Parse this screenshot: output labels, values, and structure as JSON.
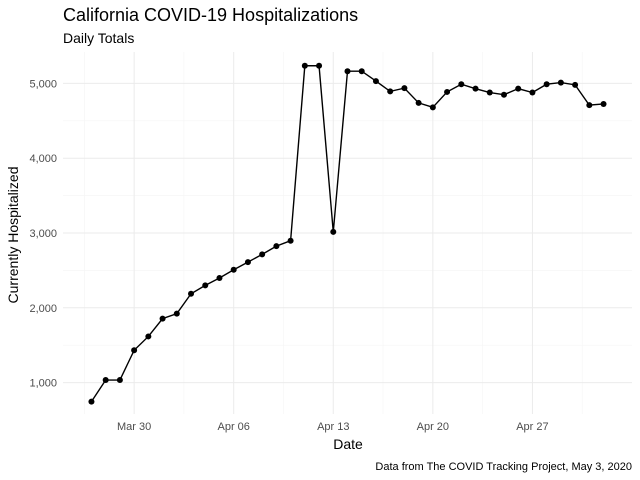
{
  "chart_data": {
    "type": "line",
    "title": "California COVID-19 Hospitalizations",
    "subtitle": "Daily Totals",
    "xlabel": "Date",
    "ylabel": "Currently Hospitalized",
    "caption": "Data from The COVID Tracking Project, May 3, 2020",
    "x_ticks": [
      {
        "date": "2020-03-30",
        "label": "Mar 30"
      },
      {
        "date": "2020-04-06",
        "label": "Apr 06"
      },
      {
        "date": "2020-04-13",
        "label": "Apr 13"
      },
      {
        "date": "2020-04-20",
        "label": "Apr 20"
      },
      {
        "date": "2020-04-27",
        "label": "Apr 27"
      }
    ],
    "y_ticks": [
      1000,
      2000,
      3000,
      4000,
      5000
    ],
    "y_tick_labels": [
      "1,000",
      "2,000",
      "3,000",
      "4,000",
      "5,000"
    ],
    "xlim": [
      "2020-03-25",
      "2020-05-04"
    ],
    "ylim": [
      580,
      5420
    ],
    "grid": true,
    "series": [
      {
        "points": [
          {
            "x": "2020-03-27",
            "y": 746
          },
          {
            "x": "2020-03-28",
            "y": 1034
          },
          {
            "x": "2020-03-29",
            "y": 1034
          },
          {
            "x": "2020-03-30",
            "y": 1432
          },
          {
            "x": "2020-03-31",
            "y": 1617
          },
          {
            "x": "2020-04-01",
            "y": 1855
          },
          {
            "x": "2020-04-02",
            "y": 1922
          },
          {
            "x": "2020-04-03",
            "y": 2188
          },
          {
            "x": "2020-04-04",
            "y": 2300
          },
          {
            "x": "2020-04-05",
            "y": 2398
          },
          {
            "x": "2020-04-06",
            "y": 2509
          },
          {
            "x": "2020-04-07",
            "y": 2611
          },
          {
            "x": "2020-04-08",
            "y": 2714
          },
          {
            "x": "2020-04-09",
            "y": 2825
          },
          {
            "x": "2020-04-10",
            "y": 2897
          },
          {
            "x": "2020-04-11",
            "y": 5236
          },
          {
            "x": "2020-04-12",
            "y": 5236
          },
          {
            "x": "2020-04-13",
            "y": 3015
          },
          {
            "x": "2020-04-14",
            "y": 5163
          },
          {
            "x": "2020-04-15",
            "y": 5163
          },
          {
            "x": "2020-04-16",
            "y": 5031
          },
          {
            "x": "2020-04-17",
            "y": 4893
          },
          {
            "x": "2020-04-18",
            "y": 4937
          },
          {
            "x": "2020-04-19",
            "y": 4739
          },
          {
            "x": "2020-04-20",
            "y": 4680
          },
          {
            "x": "2020-04-21",
            "y": 4886
          },
          {
            "x": "2020-04-22",
            "y": 4989
          },
          {
            "x": "2020-04-23",
            "y": 4930
          },
          {
            "x": "2020-04-24",
            "y": 4878
          },
          {
            "x": "2020-04-25",
            "y": 4849
          },
          {
            "x": "2020-04-26",
            "y": 4930
          },
          {
            "x": "2020-04-27",
            "y": 4878
          },
          {
            "x": "2020-04-28",
            "y": 4989
          },
          {
            "x": "2020-04-29",
            "y": 5011
          },
          {
            "x": "2020-04-30",
            "y": 4981
          },
          {
            "x": "2020-05-01",
            "y": 4710
          },
          {
            "x": "2020-05-02",
            "y": 4725
          }
        ],
        "color": "#000000"
      }
    ],
    "colors": {
      "grid_major": "#ebebeb",
      "grid_minor": "#f5f5f5",
      "tick_text": "#4d4d4d"
    }
  }
}
